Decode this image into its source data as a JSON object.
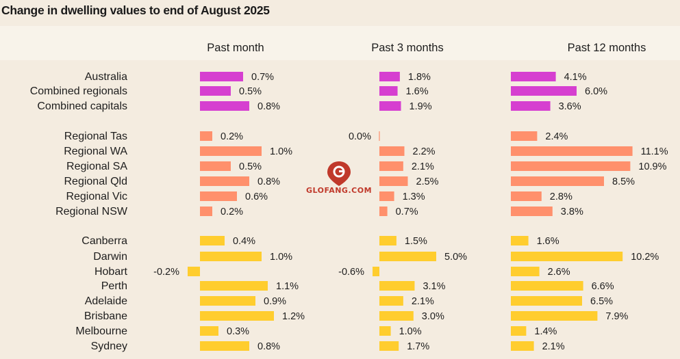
{
  "title": "Change in dwelling values to end of August 2025",
  "watermark": "GLOFANG.COM",
  "colors": {
    "background": "#f4ece0",
    "header_band": "#f8f3ea",
    "aggregate": "#d63fd0",
    "regional": "#ff906c",
    "capital": "#ffcd2e",
    "zero_line": "#c9c2b8"
  },
  "chart_data": {
    "type": "bar",
    "orientation": "horizontal",
    "title": "Change in dwelling values to end of August 2025",
    "value_suffix": "%",
    "categories": [
      "Australia",
      "Combined regionals",
      "Combined capitals",
      "Regional Tas",
      "Regional WA",
      "Regional SA",
      "Regional Qld",
      "Regional Vic",
      "Regional NSW",
      "Canberra",
      "Darwin",
      "Hobart",
      "Perth",
      "Adelaide",
      "Brisbane",
      "Melbourne",
      "Sydney"
    ],
    "groups": [
      {
        "color_key": "aggregate",
        "start": 0,
        "count": 3
      },
      {
        "color_key": "regional",
        "start": 3,
        "count": 6
      },
      {
        "color_key": "capital",
        "start": 9,
        "count": 8
      }
    ],
    "series": [
      {
        "name": "Past month",
        "values": [
          0.7,
          0.5,
          0.8,
          0.2,
          1.0,
          0.5,
          0.8,
          0.6,
          0.2,
          0.4,
          1.0,
          -0.2,
          1.1,
          0.9,
          1.2,
          0.3,
          0.8
        ]
      },
      {
        "name": "Past 3 months",
        "values": [
          1.8,
          1.6,
          1.9,
          0.0,
          2.2,
          2.1,
          2.5,
          1.3,
          0.7,
          1.5,
          5.0,
          -0.6,
          3.1,
          2.1,
          3.0,
          1.0,
          1.7
        ]
      },
      {
        "name": "Past 12 months",
        "values": [
          4.1,
          6.0,
          3.6,
          2.4,
          11.1,
          10.9,
          8.5,
          2.8,
          3.8,
          1.6,
          10.2,
          2.6,
          6.6,
          6.5,
          7.9,
          1.4,
          2.1
        ]
      }
    ]
  }
}
